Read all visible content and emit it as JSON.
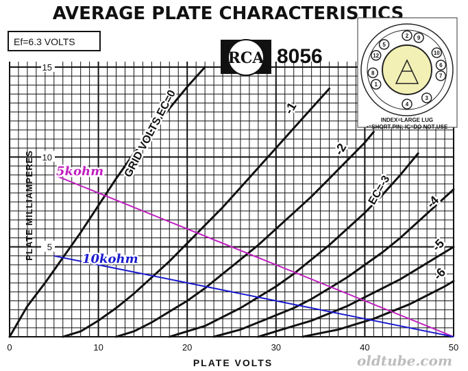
{
  "chart_data": {
    "type": "line",
    "title": "AVERAGE PLATE CHARACTERISTICS",
    "xlabel": "PLATE VOLTS",
    "ylabel": "PLATE MILLIAMPERES",
    "xlim": [
      0,
      50
    ],
    "ylim": [
      0,
      15
    ],
    "grid": true,
    "x_ticks": [
      "0",
      "10",
      "20",
      "30",
      "40",
      "50"
    ],
    "y_ticks": [
      "5",
      "10",
      "15"
    ],
    "heater_label": "Ef=6.3 VOLTS",
    "tube_type": "8056",
    "brand": "RCA",
    "series": [
      {
        "name": "GRID VOLTS EC=0",
        "label": "GRID VOLTS EC=0",
        "points": [
          [
            0,
            0
          ],
          [
            2,
            1.7
          ],
          [
            4,
            3.0
          ],
          [
            6,
            4.4
          ],
          [
            8,
            5.8
          ],
          [
            10,
            7.3
          ],
          [
            12,
            8.8
          ],
          [
            14,
            10.2
          ],
          [
            16,
            11.5
          ],
          [
            18,
            12.7
          ],
          [
            20,
            13.9
          ],
          [
            22,
            15.0
          ]
        ]
      },
      {
        "name": "-1",
        "label": "-1",
        "points": [
          [
            6,
            0
          ],
          [
            8,
            0.3
          ],
          [
            10,
            0.9
          ],
          [
            12,
            1.6
          ],
          [
            14,
            2.4
          ],
          [
            16,
            3.3
          ],
          [
            18,
            4.2
          ],
          [
            20,
            5.2
          ],
          [
            22,
            6.2
          ],
          [
            24,
            7.2
          ],
          [
            26,
            8.3
          ],
          [
            28,
            9.4
          ],
          [
            30,
            10.5
          ],
          [
            32,
            11.6
          ],
          [
            34,
            12.7
          ],
          [
            36,
            13.8
          ]
        ]
      },
      {
        "name": "-2",
        "label": "-2",
        "points": [
          [
            12,
            0
          ],
          [
            14,
            0.3
          ],
          [
            16,
            0.8
          ],
          [
            18,
            1.4
          ],
          [
            20,
            2.0
          ],
          [
            22,
            2.7
          ],
          [
            24,
            3.5
          ],
          [
            26,
            4.3
          ],
          [
            28,
            5.1
          ],
          [
            30,
            6.0
          ],
          [
            32,
            6.9
          ],
          [
            34,
            7.8
          ],
          [
            36,
            8.8
          ],
          [
            38,
            9.8
          ],
          [
            40,
            10.8
          ],
          [
            41,
            11.4
          ]
        ]
      },
      {
        "name": "EC=-3",
        "label": "EC=-3",
        "points": [
          [
            18,
            0
          ],
          [
            20,
            0.3
          ],
          [
            22,
            0.6
          ],
          [
            24,
            1.1
          ],
          [
            26,
            1.6
          ],
          [
            28,
            2.2
          ],
          [
            30,
            2.8
          ],
          [
            32,
            3.5
          ],
          [
            34,
            4.3
          ],
          [
            36,
            5.1
          ],
          [
            38,
            6.0
          ],
          [
            40,
            6.9
          ],
          [
            42,
            7.9
          ],
          [
            44,
            9.0
          ],
          [
            46,
            10.2
          ]
        ]
      },
      {
        "name": "-4",
        "label": "-4",
        "points": [
          [
            23,
            0
          ],
          [
            26,
            0.4
          ],
          [
            28,
            0.8
          ],
          [
            30,
            1.2
          ],
          [
            32,
            1.6
          ],
          [
            34,
            2.1
          ],
          [
            36,
            2.7
          ],
          [
            38,
            3.3
          ],
          [
            40,
            4.0
          ],
          [
            42,
            4.7
          ],
          [
            44,
            5.5
          ],
          [
            46,
            6.4
          ],
          [
            48,
            7.3
          ],
          [
            50,
            8.2
          ]
        ]
      },
      {
        "name": "-5",
        "label": "-5",
        "points": [
          [
            28,
            0
          ],
          [
            30,
            0.3
          ],
          [
            32,
            0.6
          ],
          [
            34,
            0.9
          ],
          [
            36,
            1.3
          ],
          [
            38,
            1.7
          ],
          [
            40,
            2.2
          ],
          [
            42,
            2.7
          ],
          [
            44,
            3.2
          ],
          [
            46,
            3.8
          ],
          [
            48,
            4.4
          ],
          [
            50,
            5.0
          ]
        ]
      },
      {
        "name": "-6",
        "label": "-6",
        "points": [
          [
            33,
            0
          ],
          [
            35,
            0.2
          ],
          [
            37,
            0.4
          ],
          [
            39,
            0.7
          ],
          [
            41,
            1.0
          ],
          [
            43,
            1.4
          ],
          [
            45,
            1.8
          ],
          [
            47,
            2.3
          ],
          [
            49,
            2.8
          ],
          [
            50,
            3.1
          ]
        ]
      }
    ],
    "load_lines": [
      {
        "name": "5kohm",
        "label": "5kohm",
        "color": "#c020c0",
        "points": [
          [
            5,
            9.0
          ],
          [
            50,
            0
          ]
        ]
      },
      {
        "name": "10kohm",
        "label": "10kohm",
        "color": "#1a1ad0",
        "points": [
          [
            5,
            4.5
          ],
          [
            50,
            0
          ]
        ]
      }
    ],
    "pinout": {
      "pins": [
        "1",
        "2",
        "3",
        "4",
        "5",
        "6",
        "7",
        "8",
        "9",
        "10",
        "12"
      ],
      "index_note": "INDEX=LARGE LUG",
      "pin_note": "•=SHORT PIN; IC=DO NOT USE"
    },
    "watermark": "oldtube.com"
  }
}
